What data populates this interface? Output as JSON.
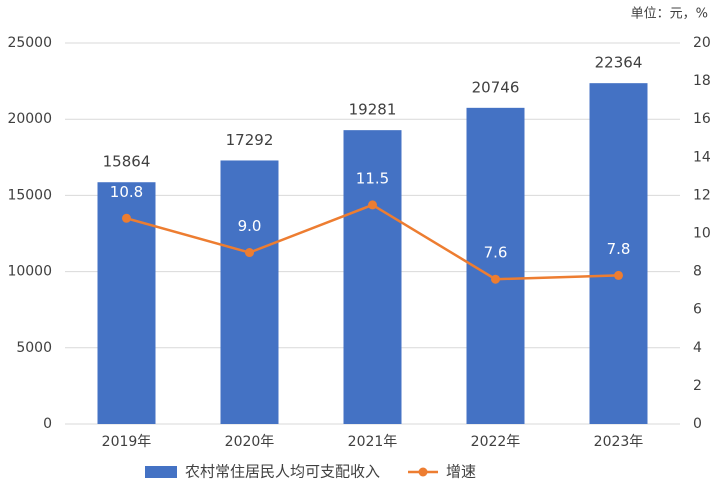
{
  "chart_data": {
    "type": "bar",
    "unit_label": "单位：元，%",
    "categories": [
      "2019年",
      "2020年",
      "2021年",
      "2022年",
      "2023年"
    ],
    "series": [
      {
        "name": "农村常住居民人均可支配收入",
        "type": "bar",
        "color": "#4472c4",
        "values": [
          15864,
          17292,
          19281,
          20746,
          22364
        ]
      },
      {
        "name": "增速",
        "type": "line",
        "axis": "y2",
        "color": "#ed7d31",
        "values": [
          10.8,
          9.0,
          11.5,
          7.6,
          7.8
        ],
        "value_labels": [
          "10.8",
          "9.0",
          "11.5",
          "7.6",
          "7.8"
        ]
      }
    ],
    "ylim": [
      0,
      25000
    ],
    "yticks": [
      0,
      5000,
      10000,
      15000,
      20000,
      25000
    ],
    "y2lim": [
      0,
      20
    ],
    "y2ticks": [
      0,
      2,
      4,
      6,
      8,
      10,
      12,
      14,
      16,
      18,
      20
    ],
    "grid": true,
    "legend": "bottom"
  }
}
